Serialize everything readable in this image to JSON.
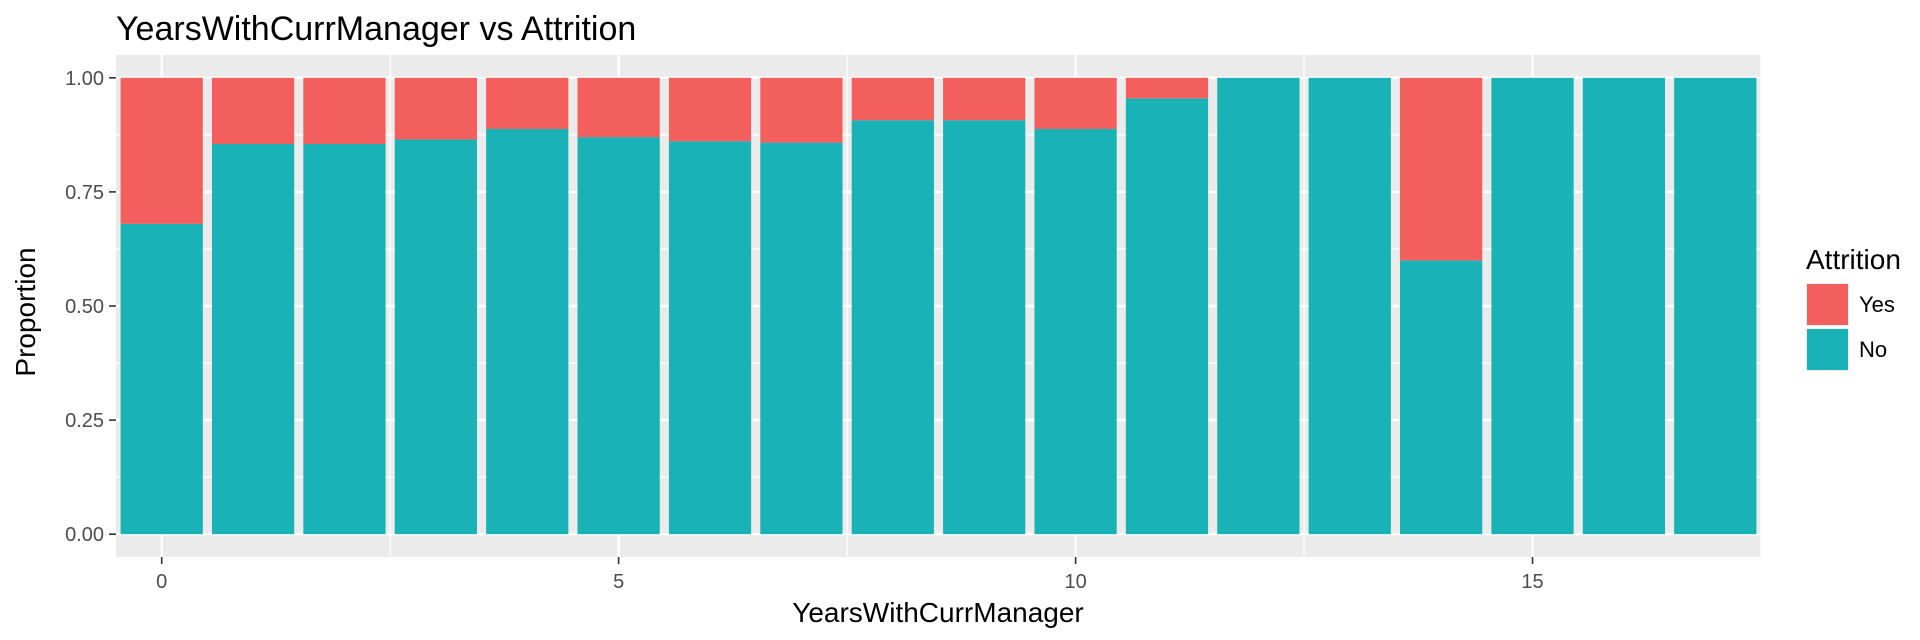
{
  "chart_data": {
    "type": "bar",
    "stacked": true,
    "title": "YearsWithCurrManager vs Attrition",
    "xlabel": "YearsWithCurrManager",
    "ylabel": "Proportion",
    "categories": [
      0,
      1,
      2,
      3,
      4,
      5,
      6,
      7,
      8,
      9,
      10,
      11,
      12,
      13,
      14,
      15,
      16,
      17
    ],
    "series": [
      {
        "name": "No",
        "color": "#19B2B6",
        "values": [
          0.68,
          0.855,
          0.855,
          0.865,
          0.888,
          0.87,
          0.861,
          0.858,
          0.907,
          0.907,
          0.888,
          0.955,
          1.0,
          1.0,
          0.6,
          1.0,
          1.0,
          1.0
        ]
      },
      {
        "name": "Yes",
        "color": "#F25F5C",
        "values": [
          0.32,
          0.145,
          0.145,
          0.135,
          0.112,
          0.13,
          0.139,
          0.142,
          0.093,
          0.093,
          0.112,
          0.045,
          0.0,
          0.0,
          0.4,
          0.0,
          0.0,
          0.0
        ]
      }
    ],
    "xticks": [
      0,
      5,
      10,
      15
    ],
    "xtick_labels": [
      "0",
      "5",
      "10",
      "15"
    ],
    "yticks": [
      0,
      0.25,
      0.5,
      0.75,
      1.0
    ],
    "ytick_labels": [
      "0.00",
      "0.25",
      "0.50",
      "0.75",
      "1.00"
    ],
    "xlim": [
      -0.5,
      17.5
    ],
    "ylim": [
      0,
      1
    ],
    "grid": true,
    "legend": {
      "title": "Attrition",
      "position": "right",
      "entries": [
        {
          "label": "Yes",
          "color": "#F25F5C"
        },
        {
          "label": "No",
          "color": "#19B2B6"
        }
      ]
    }
  }
}
